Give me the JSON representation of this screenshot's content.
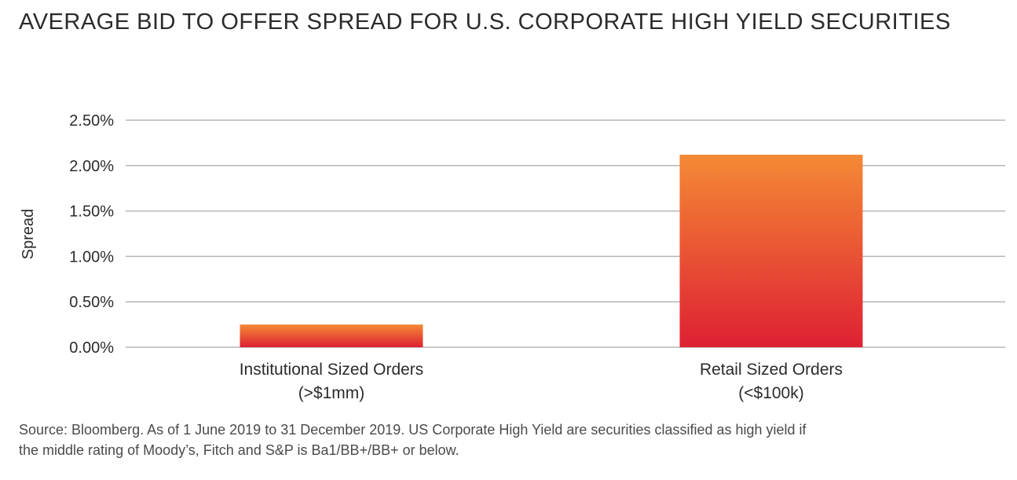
{
  "chart_data": {
    "type": "bar",
    "title": "AVERAGE BID TO OFFER SPREAD FOR U.S. CORPORATE HIGH YIELD SECURITIES",
    "xlabel": "",
    "ylabel": "Spread",
    "ylim": [
      0,
      2.5
    ],
    "yticks": [
      0,
      0.5,
      1.0,
      1.5,
      2.0,
      2.5
    ],
    "ytick_labels": [
      "0.00%",
      "0.50%",
      "1.00%",
      "1.50%",
      "2.00%",
      "2.50%"
    ],
    "grid": true,
    "categories": [
      {
        "line1": "Institutional Sized Orders",
        "line2": "(>$1mm)"
      },
      {
        "line1": "Retail Sized Orders",
        "line2": "(<$100k)"
      }
    ],
    "values": [
      0.25,
      2.12
    ],
    "colors": {
      "bar_top": "#f58a35",
      "bar_bottom": "#de2033",
      "grid": "#b5b5b5"
    }
  },
  "footnote": {
    "line1": "Source: Bloomberg. As of 1 June 2019 to 31 December 2019. US Corporate High Yield are securities classified as high yield if",
    "line2": "the middle rating of Moody’s, Fitch and S&P is Ba1/BB+/BB+ or below."
  }
}
